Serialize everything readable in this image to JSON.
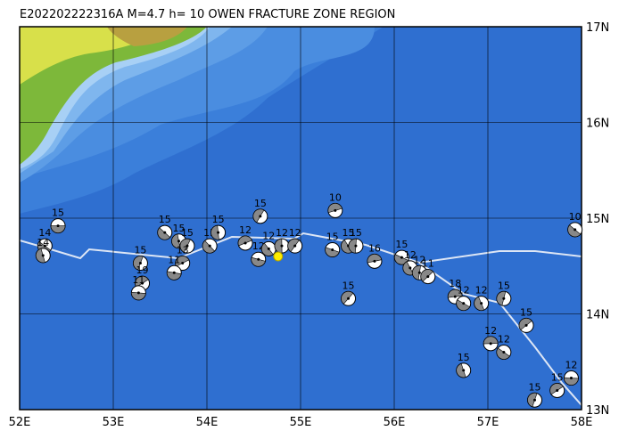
{
  "title": "E202202222316A  M=4.7  h= 10 OWEN FRACTURE ZONE REGION",
  "lon_ticks": [
    {
      "value": 52,
      "label": "52E"
    },
    {
      "value": 53,
      "label": "53E"
    },
    {
      "value": 54,
      "label": "54E"
    },
    {
      "value": 55,
      "label": "55E"
    },
    {
      "value": 56,
      "label": "56E"
    },
    {
      "value": 57,
      "label": "57E"
    },
    {
      "value": 58,
      "label": "58E"
    }
  ],
  "lat_ticks": [
    {
      "value": 13,
      "label": "13N"
    },
    {
      "value": 14,
      "label": "14N"
    },
    {
      "value": 15,
      "label": "15N"
    },
    {
      "value": 16,
      "label": "16N"
    },
    {
      "value": 17,
      "label": "17N"
    }
  ],
  "lon_range": [
    52,
    58
  ],
  "lat_range": [
    13,
    17
  ],
  "epicenter": {
    "lon": 54.76,
    "lat": 14.6
  },
  "events": [
    {
      "lon": 52.41,
      "lat": 14.92,
      "depth": 15
    },
    {
      "lon": 52.27,
      "lat": 14.71,
      "depth": 14
    },
    {
      "lon": 52.25,
      "lat": 14.61,
      "depth": 14
    },
    {
      "lon": 53.29,
      "lat": 14.53,
      "depth": 15
    },
    {
      "lon": 53.31,
      "lat": 14.32,
      "depth": 19
    },
    {
      "lon": 53.27,
      "lat": 14.22,
      "depth": 11
    },
    {
      "lon": 53.55,
      "lat": 14.85,
      "depth": 15
    },
    {
      "lon": 53.7,
      "lat": 14.76,
      "depth": 15
    },
    {
      "lon": 53.79,
      "lat": 14.71,
      "depth": 15
    },
    {
      "lon": 53.74,
      "lat": 14.53,
      "depth": 13
    },
    {
      "lon": 53.65,
      "lat": 14.43,
      "depth": 11
    },
    {
      "lon": 54.03,
      "lat": 14.71,
      "depth": 15
    },
    {
      "lon": 54.12,
      "lat": 14.85,
      "depth": 15
    },
    {
      "lon": 54.57,
      "lat": 15.02,
      "depth": 15
    },
    {
      "lon": 54.41,
      "lat": 14.74,
      "depth": 12
    },
    {
      "lon": 54.55,
      "lat": 14.57,
      "depth": 12
    },
    {
      "lon": 54.66,
      "lat": 14.68,
      "depth": 12
    },
    {
      "lon": 54.8,
      "lat": 14.71,
      "depth": 12
    },
    {
      "lon": 54.94,
      "lat": 14.71,
      "depth": 12
    },
    {
      "lon": 55.37,
      "lat": 15.08,
      "depth": 10
    },
    {
      "lon": 55.34,
      "lat": 14.67,
      "depth": 15
    },
    {
      "lon": 55.51,
      "lat": 14.71,
      "depth": 15
    },
    {
      "lon": 55.59,
      "lat": 14.71,
      "depth": 15
    },
    {
      "lon": 55.51,
      "lat": 14.16,
      "depth": 15
    },
    {
      "lon": 55.79,
      "lat": 14.55,
      "depth": 16
    },
    {
      "lon": 56.08,
      "lat": 14.59,
      "depth": 15
    },
    {
      "lon": 56.17,
      "lat": 14.48,
      "depth": 12
    },
    {
      "lon": 56.27,
      "lat": 14.43,
      "depth": 12
    },
    {
      "lon": 56.36,
      "lat": 14.39,
      "depth": 11
    },
    {
      "lon": 56.65,
      "lat": 14.18,
      "depth": 18
    },
    {
      "lon": 56.74,
      "lat": 14.11,
      "depth": 12
    },
    {
      "lon": 56.93,
      "lat": 14.11,
      "depth": 12
    },
    {
      "lon": 57.17,
      "lat": 14.16,
      "depth": 15
    },
    {
      "lon": 57.41,
      "lat": 13.88,
      "depth": 15
    },
    {
      "lon": 57.03,
      "lat": 13.69,
      "depth": 12
    },
    {
      "lon": 57.17,
      "lat": 13.6,
      "depth": 12
    },
    {
      "lon": 56.74,
      "lat": 13.41,
      "depth": 15
    },
    {
      "lon": 57.5,
      "lat": 13.1,
      "depth": 15
    },
    {
      "lon": 57.74,
      "lat": 13.2,
      "depth": 15
    },
    {
      "lon": 57.89,
      "lat": 13.33,
      "depth": 12
    },
    {
      "lon": 57.93,
      "lat": 14.88,
      "depth": 10
    }
  ]
}
